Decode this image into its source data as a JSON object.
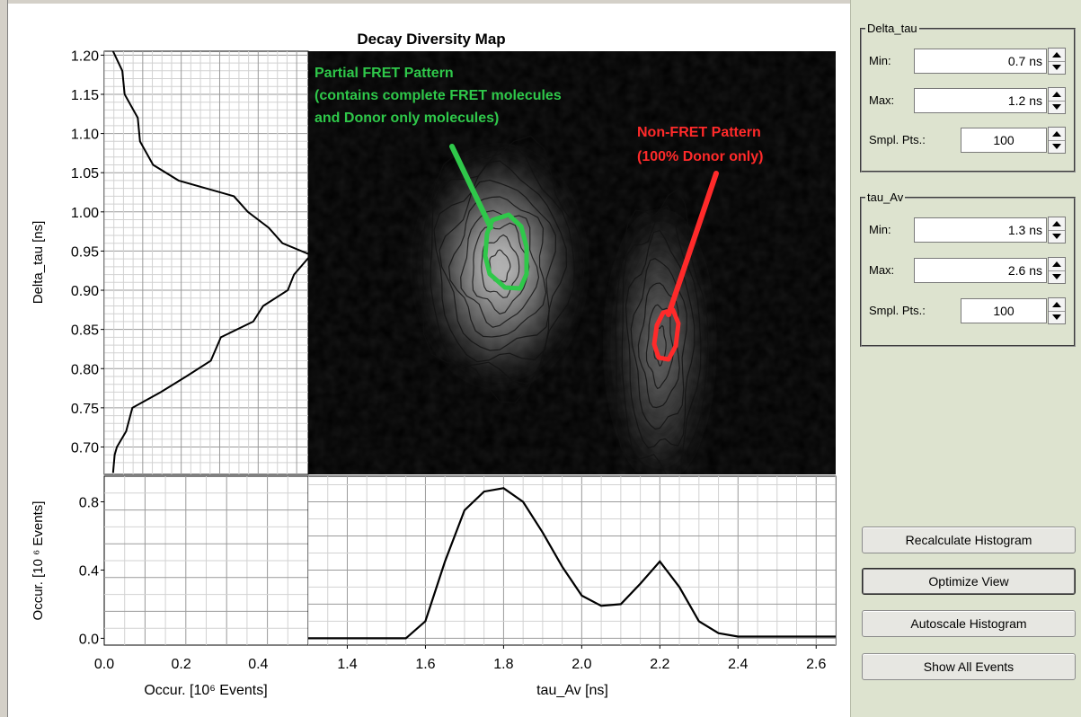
{
  "chart_data": [
    {
      "type": "heatmap",
      "title": "Decay Diversity Map",
      "xlabel": "tau_Av [ns]",
      "ylabel": "",
      "xlim": [
        1.3,
        2.65
      ],
      "ylim": [
        0.665,
        1.205
      ],
      "blobs": [
        {
          "cx": 1.79,
          "cy": 0.93,
          "rx": 0.17,
          "ry": 0.13,
          "peak": 0.92
        },
        {
          "cx": 2.2,
          "cy": 0.83,
          "rx": 0.1,
          "ry": 0.16,
          "peak": 0.5
        }
      ],
      "annotations": [
        {
          "text": [
            "Partial FRET Pattern",
            "(contains complete FRET molecules",
            "and Donor only molecules)"
          ],
          "color": "#2fc84a"
        },
        {
          "text": [
            "Non-FRET Pattern",
            "(100% Donor only)"
          ],
          "color": "#ff2a2a"
        }
      ]
    },
    {
      "type": "line",
      "ylabel": "Delta_tau [ns]",
      "xlabel": "Occur. [10⁶ Events]",
      "xlim": [
        0.0,
        0.53
      ],
      "ylim": [
        0.665,
        1.205
      ],
      "y_ticks": [
        "0.70",
        "0.75",
        "0.80",
        "0.85",
        "0.90",
        "0.95",
        "1.00",
        "1.05",
        "1.10",
        "1.15",
        "1.20"
      ],
      "x_ticks": [
        "0.0",
        "0.2",
        "0.4"
      ],
      "points": [
        [
          0.03,
          0.667
        ],
        [
          0.02,
          0.69
        ],
        [
          0.04,
          0.7
        ],
        [
          0.05,
          0.72
        ],
        [
          0.08,
          0.75
        ],
        [
          0.14,
          0.77
        ],
        [
          0.22,
          0.79
        ],
        [
          0.27,
          0.81
        ],
        [
          0.31,
          0.84
        ],
        [
          0.38,
          0.86
        ],
        [
          0.42,
          0.88
        ],
        [
          0.47,
          0.9
        ],
        [
          0.5,
          0.92
        ],
        [
          0.53,
          0.945
        ],
        [
          0.47,
          0.96
        ],
        [
          0.42,
          0.98
        ],
        [
          0.38,
          1.0
        ],
        [
          0.33,
          1.02
        ],
        [
          0.2,
          1.04
        ],
        [
          0.12,
          1.06
        ],
        [
          0.1,
          1.09
        ],
        [
          0.08,
          1.12
        ],
        [
          0.06,
          1.15
        ],
        [
          0.04,
          1.18
        ],
        [
          0.03,
          1.205
        ]
      ]
    },
    {
      "type": "line",
      "ylabel": "Occur. [10 ⁶ Events]",
      "xlim": [
        1.3,
        2.65
      ],
      "ylim": [
        -0.04,
        0.95
      ],
      "y_ticks": [
        "0.0",
        "0.4",
        "0.8"
      ],
      "x_ticks": [
        "1.4",
        "1.6",
        "1.8",
        "2.0",
        "2.2",
        "2.4",
        "2.6"
      ],
      "x": [
        1.3,
        1.55,
        1.6,
        1.65,
        1.7,
        1.75,
        1.8,
        1.85,
        1.9,
        1.95,
        2.0,
        2.05,
        2.1,
        2.15,
        2.2,
        2.25,
        2.3,
        2.35,
        2.4,
        2.65
      ],
      "y": [
        0.0,
        0.0,
        0.1,
        0.45,
        0.75,
        0.86,
        0.88,
        0.8,
        0.62,
        0.42,
        0.25,
        0.19,
        0.2,
        0.32,
        0.45,
        0.3,
        0.1,
        0.03,
        0.01,
        0.01
      ]
    }
  ],
  "panel": {
    "delta_tau": {
      "legend": "Delta_tau",
      "min_label": "Min:",
      "min_value": "0.7 ns",
      "max_label": "Max:",
      "max_value": "1.2 ns",
      "pts_label": "Smpl. Pts.:",
      "pts_value": "100"
    },
    "tau_av": {
      "legend": "tau_Av",
      "min_label": "Min:",
      "min_value": "1.3 ns",
      "max_label": "Max:",
      "max_value": "2.6 ns",
      "pts_label": "Smpl. Pts.:",
      "pts_value": "100"
    },
    "buttons": {
      "recalculate": "Recalculate Histogram",
      "optimize": "Optimize View",
      "autoscale": "Autoscale Histogram",
      "show_all": "Show All Events"
    }
  },
  "colors": {
    "panel_bg": "#dde3cf",
    "green_annotation": "#2fc84a",
    "red_annotation": "#ff2a2a"
  }
}
